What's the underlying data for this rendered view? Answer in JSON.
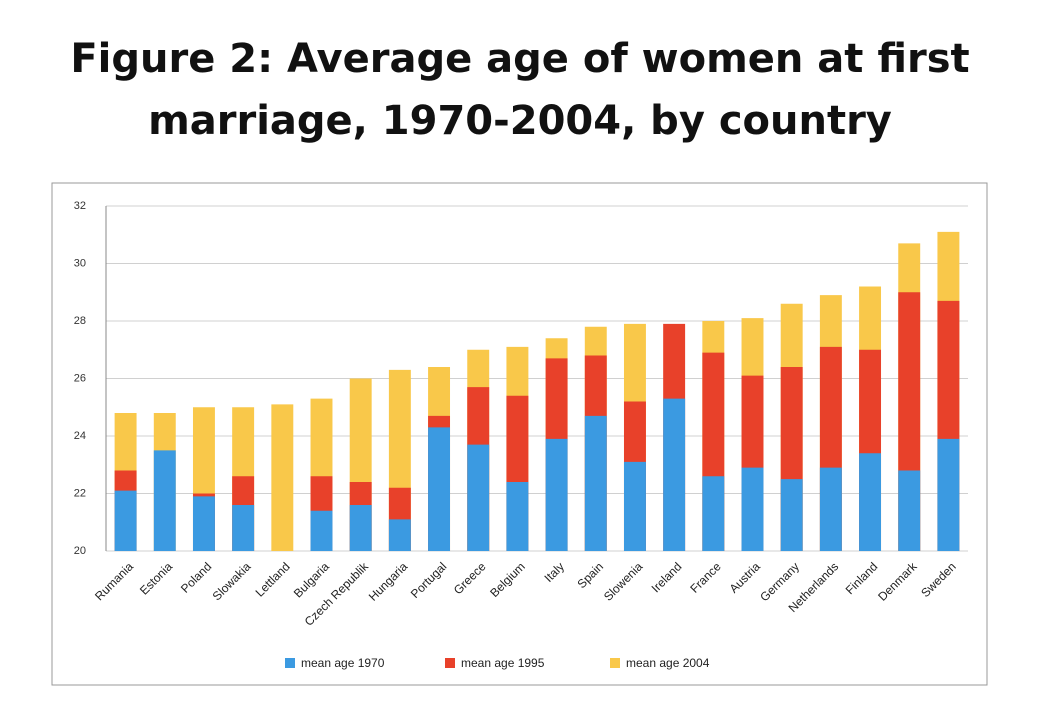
{
  "chart_data": {
    "type": "overlap_bar",
    "title": "Figure 2: Average age of women at first marriage, 1970-2004, by country",
    "categories": [
      "Rumania",
      "Estonia",
      "Poland",
      "Slowakia",
      "Lettland",
      "Bulgaria",
      "Czech Republik",
      "Hungaria",
      "Portugal",
      "Greece",
      "Belgium",
      "Italy",
      "Spain",
      "Slowenia",
      "Ireland",
      "France",
      "Austria",
      "Germany",
      "Netherlands",
      "Finland",
      "Denmark",
      "Sweden"
    ],
    "series": [
      {
        "name": "mean age 1970",
        "color": "#3b9ae1",
        "values": [
          22.1,
          23.5,
          21.9,
          21.6,
          null,
          21.4,
          21.6,
          21.1,
          24.3,
          23.7,
          22.4,
          23.9,
          24.7,
          23.1,
          25.3,
          22.6,
          22.9,
          22.5,
          22.9,
          23.4,
          22.8,
          23.9
        ]
      },
      {
        "name": "mean age 1995",
        "color": "#e8412a",
        "values": [
          22.8,
          null,
          22.0,
          22.6,
          null,
          22.6,
          22.4,
          22.2,
          24.7,
          25.7,
          25.4,
          26.7,
          26.8,
          25.2,
          27.9,
          26.9,
          26.1,
          26.4,
          27.1,
          27.0,
          29.0,
          28.7
        ]
      },
      {
        "name": "mean age 2004",
        "color": "#f9c84a",
        "values": [
          24.8,
          24.8,
          25.0,
          25.0,
          25.1,
          25.3,
          26.0,
          26.3,
          26.4,
          27.0,
          27.1,
          27.4,
          27.8,
          27.9,
          null,
          28.0,
          28.1,
          28.6,
          28.9,
          29.2,
          30.7,
          31.1
        ]
      }
    ],
    "ylim": [
      20,
      32
    ],
    "yticks": [
      20,
      22,
      24,
      26,
      28,
      30,
      32
    ],
    "grid": true,
    "legend": "bottom"
  }
}
